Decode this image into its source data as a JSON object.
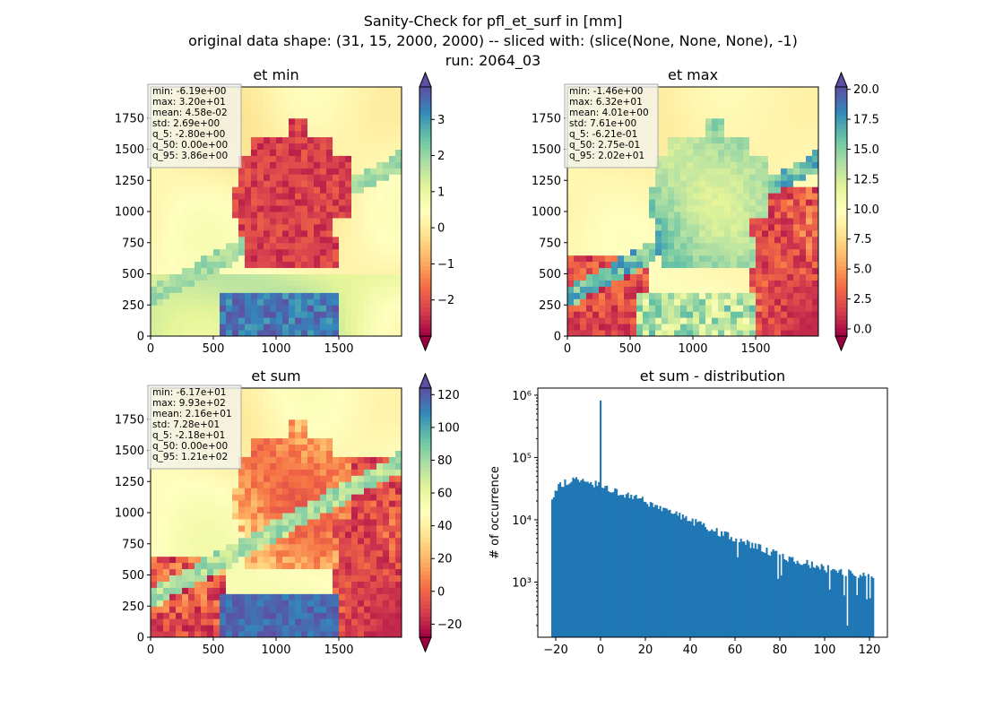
{
  "suptitle": {
    "line1": "Sanity-Check for pfl_et_surf in [mm]",
    "line2": "original data shape: (31, 15, 2000, 2000) -- sliced with: (slice(None, None, None), -1)",
    "line3": "run: 2064_03"
  },
  "colormap": "Spectral",
  "colormap_stops": [
    "#9e0142",
    "#d53e4f",
    "#f46d43",
    "#fdae61",
    "#fee08b",
    "#ffffbf",
    "#e6f598",
    "#abdda4",
    "#66c2a5",
    "#3288bd",
    "#5e4fa2"
  ],
  "chart_data": [
    {
      "id": "et_min",
      "type": "heatmap",
      "title": "et min",
      "xticks": [
        "0",
        "500",
        "1000",
        "1500"
      ],
      "yticks": [
        "0",
        "250",
        "500",
        "750",
        "1000",
        "1250",
        "1500",
        "1750"
      ],
      "xlim": [
        0,
        2000
      ],
      "ylim": [
        0,
        2000
      ],
      "colorbar": {
        "vmin": -3.0,
        "vmax": 3.9,
        "ticks": [
          "3",
          "2",
          "1",
          "0",
          "−1",
          "−2"
        ],
        "tick_values": [
          3,
          2,
          1,
          0,
          -1,
          -2
        ],
        "extend": "both"
      },
      "stats": [
        "min: -6.19e+00",
        "max: 3.20e+01",
        "mean: 4.58e-02",
        "std: 2.69e+00",
        "q_5: -2.80e+00",
        "q_50: 0.00e+00",
        "q_95: 3.86e+00"
      ]
    },
    {
      "id": "et_max",
      "type": "heatmap",
      "title": "et max",
      "xticks": [
        "0",
        "500",
        "1000",
        "1500"
      ],
      "yticks": [
        "0",
        "250",
        "500",
        "750",
        "1000",
        "1250",
        "1500",
        "1750"
      ],
      "xlim": [
        0,
        2000
      ],
      "ylim": [
        0,
        2000
      ],
      "colorbar": {
        "vmin": -0.6,
        "vmax": 20.2,
        "ticks": [
          "20.0",
          "17.5",
          "15.0",
          "12.5",
          "10.0",
          "7.5",
          "5.0",
          "2.5",
          "0.0"
        ],
        "tick_values": [
          20,
          17.5,
          15,
          12.5,
          10,
          7.5,
          5,
          2.5,
          0
        ],
        "extend": "both"
      },
      "stats": [
        "min: -1.46e+00",
        "max: 6.32e+01",
        "mean: 4.01e+00",
        "std: 7.61e+00",
        "q_5: -6.21e-01",
        "q_50: 2.75e-01",
        "q_95: 2.02e+01"
      ]
    },
    {
      "id": "et_sum",
      "type": "heatmap",
      "title": "et sum",
      "xticks": [
        "0",
        "500",
        "1000",
        "1500"
      ],
      "yticks": [
        "0",
        "250",
        "500",
        "750",
        "1000",
        "1250",
        "1500",
        "1750"
      ],
      "xlim": [
        0,
        2000
      ],
      "ylim": [
        0,
        2000
      ],
      "colorbar": {
        "vmin": -28,
        "vmax": 124,
        "ticks": [
          "120",
          "100",
          "80",
          "60",
          "40",
          "20",
          "0",
          "−20"
        ],
        "tick_values": [
          120,
          100,
          80,
          60,
          40,
          20,
          0,
          -20
        ],
        "extend": "both"
      },
      "stats": [
        "min: -6.17e+01",
        "max: 9.93e+02",
        "mean: 2.16e+01",
        "std: 7.28e+01",
        "q_5: -2.18e+01",
        "q_50: 0.00e+00",
        "q_95: 1.21e+02"
      ]
    },
    {
      "id": "et_sum_distribution",
      "type": "bar",
      "title": "et sum - distribution",
      "ylabel": "# of occurrence",
      "yscale": "log",
      "xlim": [
        -28,
        128
      ],
      "ylim": [
        130,
        1300000
      ],
      "xticks": [
        "−20",
        "0",
        "20",
        "40",
        "60",
        "80",
        "100",
        "120"
      ],
      "xtick_values": [
        -20,
        0,
        20,
        40,
        60,
        80,
        100,
        120
      ],
      "yticks": [
        "10³",
        "10⁴",
        "10⁵",
        "10⁶"
      ],
      "ytick_values": [
        1000,
        10000,
        100000,
        1000000
      ],
      "bar_color": "#1f77b4",
      "bins": {
        "start": -22,
        "width": 0.72
      },
      "envelope": [
        [
          -22,
          20000
        ],
        [
          -19,
          33000
        ],
        [
          -16,
          40000
        ],
        [
          -10,
          45000
        ],
        [
          -5,
          42000
        ],
        [
          -1,
          36000
        ],
        [
          1,
          32000
        ],
        [
          10,
          27000
        ],
        [
          20,
          20000
        ],
        [
          30,
          14000
        ],
        [
          40,
          10000
        ],
        [
          50,
          7000
        ],
        [
          60,
          5000
        ],
        [
          70,
          3700
        ],
        [
          80,
          2700
        ],
        [
          90,
          2100
        ],
        [
          100,
          1700
        ],
        [
          110,
          1400
        ],
        [
          121,
          1200
        ]
      ],
      "spike": {
        "x": 0,
        "count": 820000
      }
    }
  ]
}
